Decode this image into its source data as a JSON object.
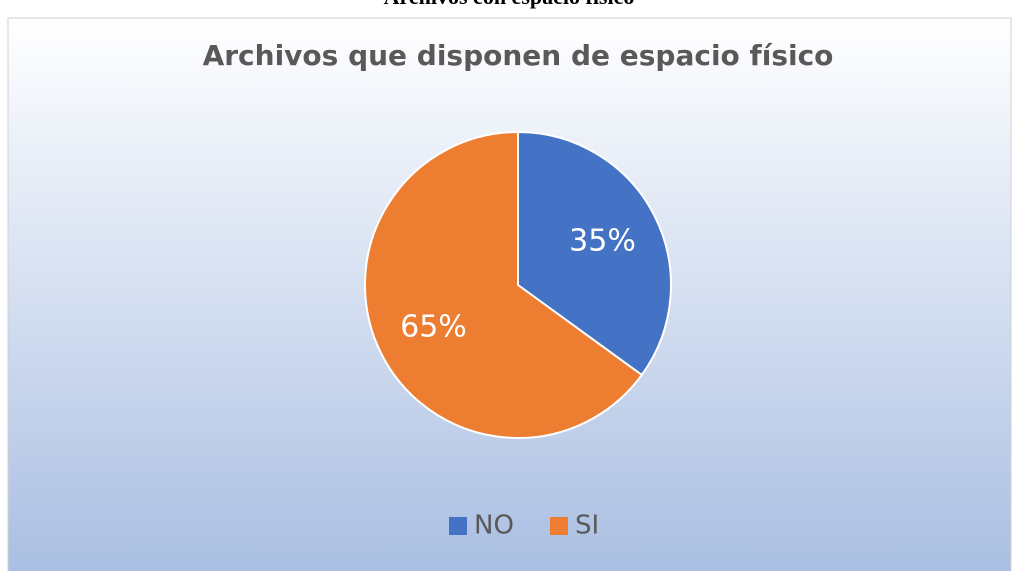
{
  "caption": "Archivos con espacio físico",
  "chart_data": {
    "type": "pie",
    "title": "Archivos que disponen de espacio físico",
    "categories": [
      "NO",
      "SI"
    ],
    "values": [
      35,
      65
    ],
    "value_labels": [
      "35%",
      "65%"
    ],
    "colors": [
      "#4472c4",
      "#ed7d31"
    ],
    "legend": "bottom"
  }
}
